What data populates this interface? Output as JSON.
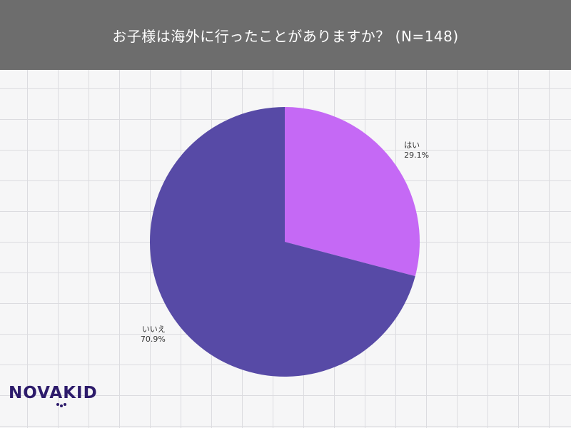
{
  "header": {
    "title": "お子様は海外に行ったことがありますか？ (N=148)"
  },
  "chart_data": {
    "type": "pie",
    "title": "お子様は海外に行ったことがありますか？ (N=148)",
    "slices": [
      {
        "label": "はい",
        "value": 29.1,
        "value_label": "29.1%",
        "color": "#c569f5"
      },
      {
        "label": "いいえ",
        "value": 70.9,
        "value_label": "70.9%",
        "color": "#574aa6"
      }
    ]
  },
  "logo": {
    "text": "NOVAKID",
    "color": "#2d1b6b"
  }
}
